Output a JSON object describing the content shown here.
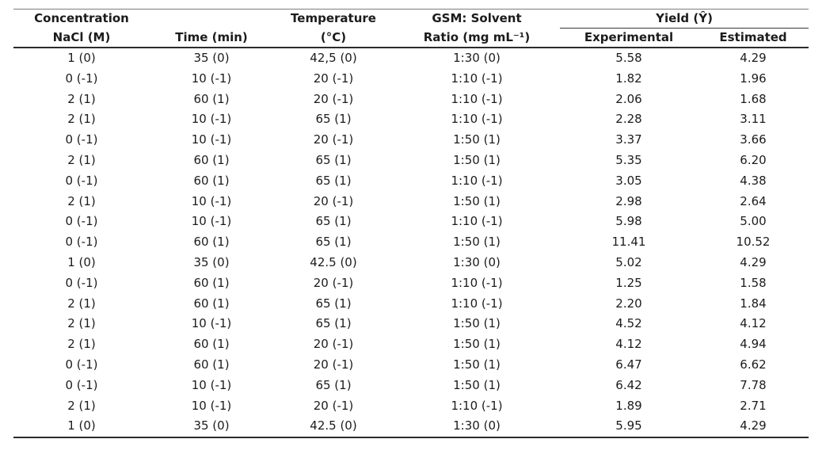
{
  "table": {
    "header": {
      "col1_line1": "Concentration",
      "col1_line2": "NaCl (M)",
      "col2": "Time (min)",
      "col3_line1": "Temperature",
      "col3_line2": "(°C)",
      "col4_line1": "GSM: Solvent",
      "col4_line2": "Ratio (mg mL⁻¹)",
      "yield_group": "Yield (Ŷ)",
      "yield_sub1": "Experimental",
      "yield_sub2": "Estimated"
    },
    "rows": [
      [
        "1 (0)",
        "35 (0)",
        "42,5 (0)",
        "1:30 (0)",
        "5.58",
        "4.29"
      ],
      [
        "0 (-1)",
        "10 (-1)",
        "20 (-1)",
        "1:10 (-1)",
        "1.82",
        "1.96"
      ],
      [
        "2 (1)",
        "60 (1)",
        "20 (-1)",
        "1:10 (-1)",
        "2.06",
        "1.68"
      ],
      [
        "2 (1)",
        "10 (-1)",
        "65 (1)",
        "1:10 (-1)",
        "2.28",
        "3.11"
      ],
      [
        "0 (-1)",
        "10 (-1)",
        "20 (-1)",
        "1:50 (1)",
        "3.37",
        "3.66"
      ],
      [
        "2 (1)",
        "60 (1)",
        "65 (1)",
        "1:50 (1)",
        "5.35",
        "6.20"
      ],
      [
        "0 (-1)",
        "60 (1)",
        "65 (1)",
        "1:10 (-1)",
        "3.05",
        "4.38"
      ],
      [
        "2 (1)",
        "10 (-1)",
        "20 (-1)",
        "1:50 (1)",
        "2.98",
        "2.64"
      ],
      [
        "0 (-1)",
        "10 (-1)",
        "65 (1)",
        "1:10 (-1)",
        "5.98",
        "5.00"
      ],
      [
        "0 (-1)",
        "60 (1)",
        "65 (1)",
        "1:50 (1)",
        "11.41",
        "10.52"
      ],
      [
        "1 (0)",
        "35 (0)",
        "42.5 (0)",
        "1:30 (0)",
        "5.02",
        "4.29"
      ],
      [
        "0 (-1)",
        "60 (1)",
        "20 (-1)",
        "1:10 (-1)",
        "1.25",
        "1.58"
      ],
      [
        "2 (1)",
        "60 (1)",
        "65 (1)",
        "1:10 (-1)",
        "2.20",
        "1.84"
      ],
      [
        "2 (1)",
        "10 (-1)",
        "65 (1)",
        "1:50 (1)",
        "4.52",
        "4.12"
      ],
      [
        "2 (1)",
        "60 (1)",
        "20 (-1)",
        "1:50 (1)",
        "4.12",
        "4.94"
      ],
      [
        "0 (-1)",
        "60 (1)",
        "20 (-1)",
        "1:50 (1)",
        "6.47",
        "6.62"
      ],
      [
        "0 (-1)",
        "10 (-1)",
        "65 (1)",
        "1:50 (1)",
        "6.42",
        "7.78"
      ],
      [
        "2 (1)",
        "10 (-1)",
        "20 (-1)",
        "1:10 (-1)",
        "1.89",
        "2.71"
      ],
      [
        "1 (0)",
        "35 (0)",
        "42.5 (0)",
        "1:30 (0)",
        "5.95",
        "4.29"
      ]
    ],
    "colors": {
      "text": "#1c1c1c",
      "rule_top": "#7d7d7d",
      "rule_heavy": "#2b2b2b"
    }
  }
}
